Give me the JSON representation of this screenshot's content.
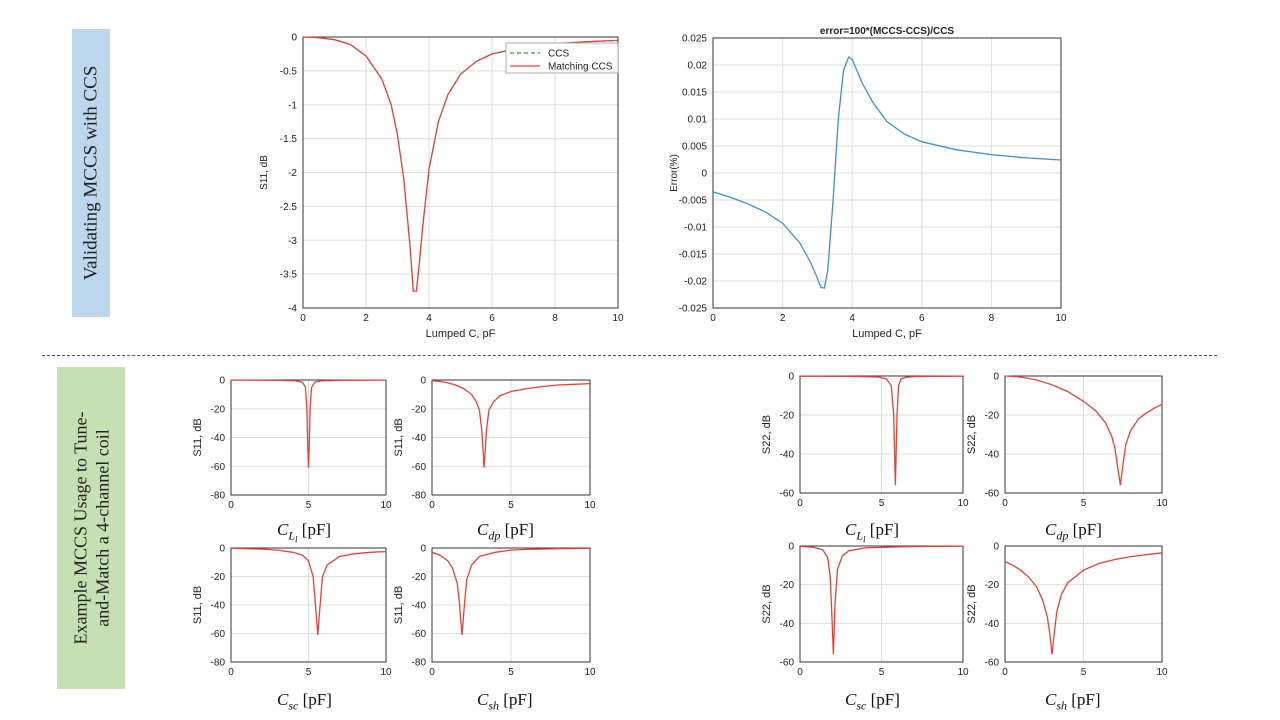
{
  "section_labels": {
    "top": "Validating MCCS with CCS",
    "bottom_line1": "Example MCCS Usage to Tune-",
    "bottom_line2": "and-Match a 4-channel coil"
  },
  "param_labels": {
    "cll": {
      "sym": "C",
      "sub": "L",
      "subsub": "l",
      "unit": "[pF]"
    },
    "cdp": {
      "sym": "C",
      "sub": "dp",
      "unit": "[pF]"
    },
    "csc": {
      "sym": "C",
      "sub": "sc",
      "unit": "[pF]"
    },
    "csh": {
      "sym": "C",
      "sub": "sh",
      "unit": "[pF]"
    }
  },
  "colors": {
    "ccs": "#2ca02c",
    "matching": "#e0433a",
    "error": "#3d8fd1",
    "grid": "#dddddd"
  },
  "chart_data": [
    {
      "id": "s11-validation",
      "type": "line",
      "title": "",
      "xlabel": "Lumped C, pF",
      "ylabel": "S11, dB",
      "xlim": [
        0,
        10
      ],
      "ylim": [
        -4,
        0
      ],
      "xticks": [
        0,
        2,
        4,
        6,
        8,
        10
      ],
      "yticks": [
        0,
        -0.5,
        -1,
        -1.5,
        -2,
        -2.5,
        -3,
        -3.5,
        -4
      ],
      "ytick_labels": [
        "0",
        "-0.5",
        "-1",
        "-1.5",
        "-2",
        "-2.5",
        "-3",
        "-3.5",
        "-4"
      ],
      "legend": {
        "position": "top-right",
        "entries": [
          "CCS",
          "Matching CCS"
        ]
      },
      "series": [
        {
          "name": "CCS",
          "style": "dashed",
          "color": "#2ca02c",
          "x": [
            0,
            0.5,
            1,
            1.5,
            2,
            2.5,
            2.8,
            3.0,
            3.2,
            3.4,
            3.5,
            3.6,
            3.7,
            3.8,
            4.0,
            4.3,
            4.6,
            5,
            5.5,
            6,
            7,
            8,
            9,
            10
          ],
          "y": [
            0,
            -0.01,
            -0.04,
            -0.11,
            -0.28,
            -0.62,
            -1.0,
            -1.45,
            -2.1,
            -3.1,
            -3.75,
            -3.75,
            -3.3,
            -2.8,
            -1.95,
            -1.25,
            -0.85,
            -0.55,
            -0.36,
            -0.25,
            -0.15,
            -0.1,
            -0.07,
            -0.05
          ]
        },
        {
          "name": "Matching CCS",
          "style": "solid",
          "color": "#e0433a",
          "x": [
            0,
            0.5,
            1,
            1.5,
            2,
            2.5,
            2.8,
            3.0,
            3.2,
            3.4,
            3.5,
            3.6,
            3.7,
            3.8,
            4.0,
            4.3,
            4.6,
            5,
            5.5,
            6,
            7,
            8,
            9,
            10
          ],
          "y": [
            0,
            -0.01,
            -0.04,
            -0.11,
            -0.28,
            -0.62,
            -1.0,
            -1.45,
            -2.1,
            -3.1,
            -3.75,
            -3.75,
            -3.3,
            -2.8,
            -1.95,
            -1.25,
            -0.85,
            -0.55,
            -0.36,
            -0.25,
            -0.15,
            -0.1,
            -0.07,
            -0.05
          ]
        }
      ]
    },
    {
      "id": "error",
      "type": "line",
      "title": "error=100*(MCCS-CCS)/CCS",
      "xlabel": "Lumped C, pF",
      "ylabel": "Error(%)",
      "xlim": [
        0,
        10
      ],
      "ylim": [
        -0.025,
        0.025
      ],
      "xticks": [
        0,
        2,
        4,
        6,
        8,
        10
      ],
      "yticks": [
        0.025,
        0.02,
        0.015,
        0.01,
        0.005,
        0,
        -0.005,
        -0.01,
        -0.015,
        -0.02,
        -0.025
      ],
      "ytick_labels": [
        "0.025",
        "0.02",
        "0.015",
        "0.01",
        "0.005",
        "0",
        "-0.005",
        "-0.01",
        "-0.015",
        "-0.02",
        "-0.025"
      ],
      "series": [
        {
          "name": "error",
          "style": "solid",
          "color": "#3d8fd1",
          "x": [
            0,
            0.5,
            1,
            1.5,
            2,
            2.5,
            2.8,
            3.0,
            3.1,
            3.2,
            3.3,
            3.45,
            3.6,
            3.75,
            3.9,
            4.0,
            4.3,
            4.6,
            5,
            5.5,
            6,
            7,
            8,
            9,
            10
          ],
          "y": [
            -0.0035,
            -0.0045,
            -0.0057,
            -0.0072,
            -0.0093,
            -0.013,
            -0.0165,
            -0.0195,
            -0.0212,
            -0.0213,
            -0.018,
            -0.005,
            0.01,
            0.019,
            0.0215,
            0.021,
            0.0165,
            0.013,
            0.0095,
            0.0072,
            0.0058,
            0.0043,
            0.0034,
            0.0028,
            0.0024
          ]
        }
      ]
    },
    {
      "id": "s11-cll",
      "type": "line",
      "xlabel": "",
      "ylabel": "S11, dB",
      "xlim": [
        0,
        10
      ],
      "ylim": [
        -80,
        0
      ],
      "xticks": [
        0,
        5,
        10
      ],
      "yticks": [
        0,
        -20,
        -40,
        -60,
        -80
      ],
      "series": [
        {
          "name": "S11",
          "color": "#e0433a",
          "style": "solid",
          "x": [
            0,
            3,
            4.2,
            4.6,
            4.8,
            4.9,
            4.95,
            5.0,
            5.05,
            5.1,
            5.2,
            5.4,
            5.8,
            7,
            10
          ],
          "y": [
            -0.05,
            -0.2,
            -0.6,
            -1.5,
            -5,
            -20,
            -45,
            -61,
            -45,
            -20,
            -5,
            -1.5,
            -0.6,
            -0.2,
            -0.05
          ]
        }
      ]
    },
    {
      "id": "s11-cdp",
      "type": "line",
      "xlabel": "",
      "ylabel": "S11, dB",
      "xlim": [
        0,
        10
      ],
      "ylim": [
        -80,
        0
      ],
      "xticks": [
        0,
        5,
        10
      ],
      "yticks": [
        0,
        -20,
        -40,
        -60,
        -80
      ],
      "series": [
        {
          "name": "S11",
          "color": "#e0433a",
          "style": "solid",
          "x": [
            0,
            0.5,
            1,
            1.5,
            2,
            2.5,
            2.8,
            3.0,
            3.15,
            3.3,
            3.45,
            3.6,
            3.9,
            4.3,
            5,
            6,
            7,
            8,
            9,
            10
          ],
          "y": [
            -0.5,
            -1,
            -2,
            -3.5,
            -6,
            -10,
            -15,
            -21,
            -35,
            -61,
            -35,
            -21,
            -15,
            -11,
            -8,
            -6,
            -4.5,
            -3.5,
            -3,
            -2.5
          ]
        }
      ]
    },
    {
      "id": "s11-csc",
      "type": "line",
      "xlabel": "",
      "ylabel": "S11, dB",
      "xlim": [
        0,
        10
      ],
      "ylim": [
        -80,
        0
      ],
      "xticks": [
        0,
        5,
        10
      ],
      "yticks": [
        0,
        -20,
        -40,
        -60,
        -80
      ],
      "series": [
        {
          "name": "S11",
          "color": "#e0433a",
          "style": "solid",
          "x": [
            0,
            1,
            2,
            3,
            4,
            4.6,
            5.0,
            5.3,
            5.45,
            5.6,
            5.75,
            5.9,
            6.2,
            7,
            8,
            9,
            10
          ],
          "y": [
            -0.3,
            -0.5,
            -0.8,
            -1.5,
            -3,
            -5,
            -9,
            -20,
            -40,
            -61,
            -40,
            -20,
            -12,
            -6,
            -4,
            -3,
            -2.5
          ]
        }
      ]
    },
    {
      "id": "s11-csh",
      "type": "line",
      "xlabel": "",
      "ylabel": "S11, dB",
      "xlim": [
        0,
        10
      ],
      "ylim": [
        -80,
        0
      ],
      "xticks": [
        0,
        5,
        10
      ],
      "yticks": [
        0,
        -20,
        -40,
        -60,
        -80
      ],
      "series": [
        {
          "name": "S11",
          "color": "#e0433a",
          "style": "solid",
          "x": [
            0,
            0.5,
            1,
            1.3,
            1.6,
            1.75,
            1.9,
            2.05,
            2.2,
            2.5,
            3,
            4,
            5,
            6,
            8,
            10
          ],
          "y": [
            -3,
            -5,
            -9,
            -14,
            -25,
            -40,
            -61,
            -40,
            -22,
            -12,
            -6,
            -3,
            -1.5,
            -1,
            -0.5,
            -0.3
          ]
        }
      ]
    },
    {
      "id": "s22-cll",
      "type": "line",
      "xlabel": "",
      "ylabel": "S22, dB",
      "xlim": [
        0,
        10
      ],
      "ylim": [
        -60,
        0
      ],
      "xticks": [
        0,
        5,
        10
      ],
      "yticks": [
        0,
        -20,
        -40,
        -60
      ],
      "series": [
        {
          "name": "S22",
          "color": "#e0433a",
          "style": "solid",
          "x": [
            0,
            3,
            4.8,
            5.3,
            5.6,
            5.75,
            5.85,
            5.95,
            6.05,
            6.2,
            6.5,
            7,
            8,
            10
          ],
          "y": [
            -0.1,
            -0.2,
            -0.5,
            -1.5,
            -5,
            -20,
            -56,
            -20,
            -5,
            -1.5,
            -0.6,
            -0.3,
            -0.2,
            -0.1
          ]
        }
      ]
    },
    {
      "id": "s22-cdp",
      "type": "line",
      "xlabel": "",
      "ylabel": "S22, dB",
      "xlim": [
        0,
        10
      ],
      "ylim": [
        -60,
        0
      ],
      "xticks": [
        0,
        5,
        10
      ],
      "yticks": [
        0,
        -20,
        -40,
        -60
      ],
      "series": [
        {
          "name": "S22",
          "color": "#e0433a",
          "style": "solid",
          "x": [
            0,
            1,
            2,
            3,
            4,
            5,
            5.8,
            6.4,
            6.8,
            7.0,
            7.2,
            7.35,
            7.5,
            7.7,
            8,
            8.5,
            9,
            9.5,
            10
          ],
          "y": [
            0,
            -0.5,
            -2,
            -4.5,
            -8,
            -13,
            -18,
            -24,
            -31,
            -37,
            -48,
            -56,
            -46,
            -35,
            -28,
            -22,
            -19,
            -16.5,
            -14.5
          ]
        }
      ]
    },
    {
      "id": "s22-csc",
      "type": "line",
      "xlabel": "",
      "ylabel": "S22, dB",
      "xlim": [
        0,
        10
      ],
      "ylim": [
        -60,
        0
      ],
      "xticks": [
        0,
        5,
        10
      ],
      "yticks": [
        0,
        -20,
        -40,
        -60
      ],
      "series": [
        {
          "name": "S22",
          "color": "#e0433a",
          "style": "solid",
          "x": [
            0,
            0.8,
            1.4,
            1.7,
            1.85,
            1.95,
            2.05,
            2.15,
            2.3,
            2.6,
            3,
            4,
            6,
            8,
            10
          ],
          "y": [
            -0.2,
            -0.6,
            -2,
            -6,
            -16,
            -35,
            -56,
            -30,
            -12,
            -5,
            -2.5,
            -1,
            -0.4,
            -0.2,
            -0.1
          ]
        }
      ]
    },
    {
      "id": "s22-csh",
      "type": "line",
      "xlabel": "",
      "ylabel": "S22, dB",
      "xlim": [
        0,
        10
      ],
      "ylim": [
        -60,
        0
      ],
      "xticks": [
        0,
        5,
        10
      ],
      "yticks": [
        0,
        -20,
        -40,
        -60
      ],
      "series": [
        {
          "name": "S22",
          "color": "#e0433a",
          "style": "solid",
          "x": [
            0,
            0.5,
            1,
            1.5,
            2,
            2.4,
            2.7,
            2.85,
            3.0,
            3.15,
            3.3,
            3.6,
            4,
            5,
            6,
            7,
            8,
            9,
            10
          ],
          "y": [
            -8,
            -10,
            -12.5,
            -16,
            -21,
            -28,
            -37,
            -45,
            -56,
            -44,
            -34,
            -25,
            -19,
            -12.5,
            -9,
            -7,
            -5.5,
            -4.5,
            -3.5
          ]
        }
      ]
    }
  ]
}
